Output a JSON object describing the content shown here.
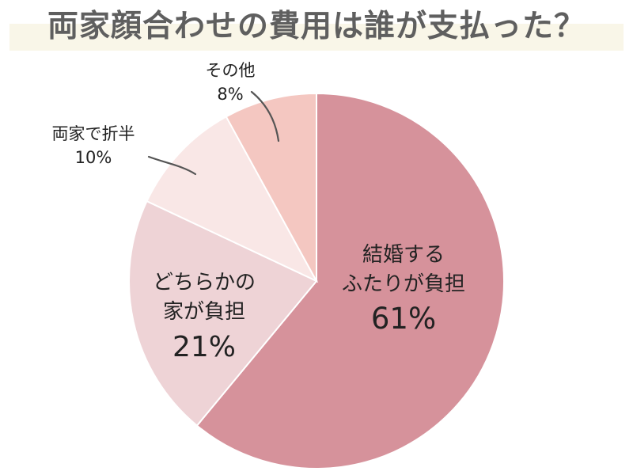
{
  "chart_data": {
    "type": "pie",
    "title": "両家顔合わせの費用は誰が支払った？",
    "slices": [
      {
        "label_lines": [
          "結婚する",
          "ふたりが負担"
        ],
        "value": 61,
        "value_label": "61%",
        "color": "#d6929b"
      },
      {
        "label_lines": [
          "どちらかの",
          "家が負担"
        ],
        "value": 21,
        "value_label": "21%",
        "color": "#eed3d6"
      },
      {
        "label_lines": [
          "両家で折半"
        ],
        "value": 10,
        "value_label": "10%",
        "color": "#f9e7e6"
      },
      {
        "label_lines": [
          "その他"
        ],
        "value": 8,
        "value_label": "8%",
        "color": "#f4c7c1"
      }
    ]
  }
}
